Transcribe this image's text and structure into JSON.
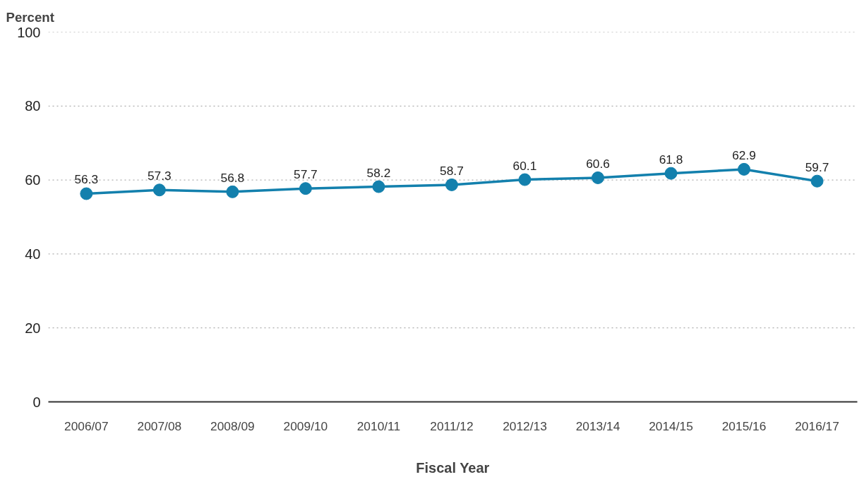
{
  "chart_data": {
    "type": "line",
    "ylabel": "Percent",
    "xlabel": "Fiscal Year",
    "categories": [
      "2006/07",
      "2007/08",
      "2008/09",
      "2009/10",
      "2010/11",
      "2011/12",
      "2012/13",
      "2013/14",
      "2014/15",
      "2015/16",
      "2016/17"
    ],
    "series": [
      {
        "color": "#1380ad",
        "values": [
          56.3,
          57.3,
          56.8,
          57.7,
          58.2,
          58.7,
          60.1,
          60.6,
          61.8,
          62.9,
          59.7
        ]
      }
    ],
    "ylim": [
      0,
      100
    ],
    "yticks": [
      0,
      20,
      40,
      60,
      80,
      100
    ],
    "grid": "y",
    "data_labels": true,
    "marker": "circle",
    "line_style": "solid"
  }
}
